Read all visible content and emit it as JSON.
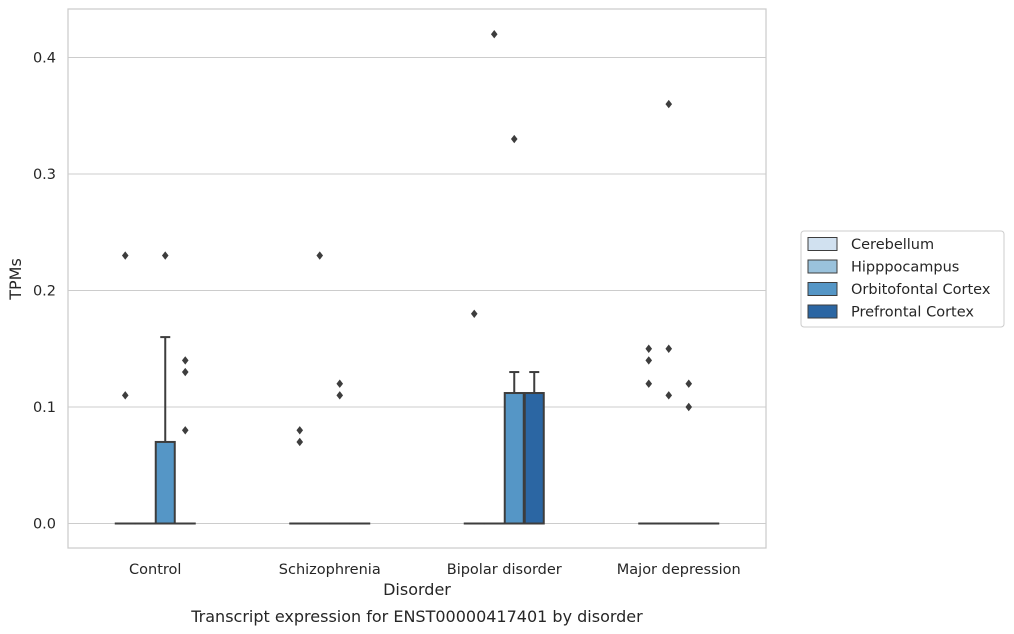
{
  "chart_data": {
    "type": "box",
    "xlabel": "Disorder",
    "ylabel": "TPMs",
    "caption": "Transcript expression for ENST00000417401 by disorder",
    "ylim": [
      -0.02,
      0.442
    ],
    "yticks": [
      "0.0",
      "0.1",
      "0.2",
      "0.3",
      "0.4"
    ],
    "ytick_values": [
      0.0,
      0.1,
      0.2,
      0.3,
      0.4
    ],
    "grid": "horizontal",
    "legend_placement": "right",
    "categories": [
      "Control",
      "Schizophrenia",
      "Bipolar disorder",
      "Major depression"
    ],
    "series": [
      {
        "name": "Cerebellum",
        "color": "#d1e1f0",
        "boxes": [
          {
            "q1": 0,
            "median": 0,
            "q3": 0,
            "whisker_low": 0,
            "whisker_high": 0,
            "outliers": [
              0.23,
              0.11
            ]
          },
          {
            "q1": 0,
            "median": 0,
            "q3": 0,
            "whisker_low": 0,
            "whisker_high": 0,
            "outliers": [
              0.08,
              0.07
            ]
          },
          {
            "q1": 0,
            "median": 0,
            "q3": 0,
            "whisker_low": 0,
            "whisker_high": 0,
            "outliers": [
              0.18
            ]
          },
          {
            "q1": 0,
            "median": 0,
            "q3": 0,
            "whisker_low": 0,
            "whisker_high": 0,
            "outliers": [
              0.15,
              0.14,
              0.12
            ]
          }
        ]
      },
      {
        "name": "Hipppocampus",
        "color": "#9ac2dc",
        "boxes": [
          {
            "q1": 0,
            "median": 0,
            "q3": 0,
            "whisker_low": 0,
            "whisker_high": 0,
            "outliers": []
          },
          {
            "q1": 0,
            "median": 0,
            "q3": 0,
            "whisker_low": 0,
            "whisker_high": 0,
            "outliers": [
              0.23
            ]
          },
          {
            "q1": 0,
            "median": 0,
            "q3": 0,
            "whisker_low": 0,
            "whisker_high": 0,
            "outliers": [
              0.42
            ]
          },
          {
            "q1": 0,
            "median": 0,
            "q3": 0,
            "whisker_low": 0,
            "whisker_high": 0,
            "outliers": [
              0.36,
              0.15,
              0.11
            ]
          }
        ]
      },
      {
        "name": "Orbitofontal Cortex",
        "color": "#5596c6",
        "boxes": [
          {
            "q1": 0,
            "median": 0,
            "q3": 0.07,
            "whisker_low": 0,
            "whisker_high": 0.16,
            "outliers": [
              0.23
            ]
          },
          {
            "q1": 0,
            "median": 0,
            "q3": 0,
            "whisker_low": 0,
            "whisker_high": 0,
            "outliers": [
              0.12,
              0.11
            ]
          },
          {
            "q1": 0,
            "median": 0,
            "q3": 0.112,
            "whisker_low": 0,
            "whisker_high": 0.13,
            "outliers": [
              0.33
            ]
          },
          {
            "q1": 0,
            "median": 0,
            "q3": 0,
            "whisker_low": 0,
            "whisker_high": 0,
            "outliers": [
              0.12,
              0.1
            ]
          }
        ]
      },
      {
        "name": "Prefrontal Cortex",
        "color": "#2b66a3",
        "boxes": [
          {
            "q1": 0,
            "median": 0,
            "q3": 0,
            "whisker_low": 0,
            "whisker_high": 0,
            "outliers": [
              0.14,
              0.13,
              0.08
            ]
          },
          {
            "q1": 0,
            "median": 0,
            "q3": 0,
            "whisker_low": 0,
            "whisker_high": 0,
            "outliers": []
          },
          {
            "q1": 0,
            "median": 0,
            "q3": 0.112,
            "whisker_low": 0,
            "whisker_high": 0.13,
            "outliers": []
          },
          {
            "q1": 0,
            "median": 0,
            "q3": 0,
            "whisker_low": 0,
            "whisker_high": 0,
            "outliers": []
          }
        ]
      }
    ]
  }
}
